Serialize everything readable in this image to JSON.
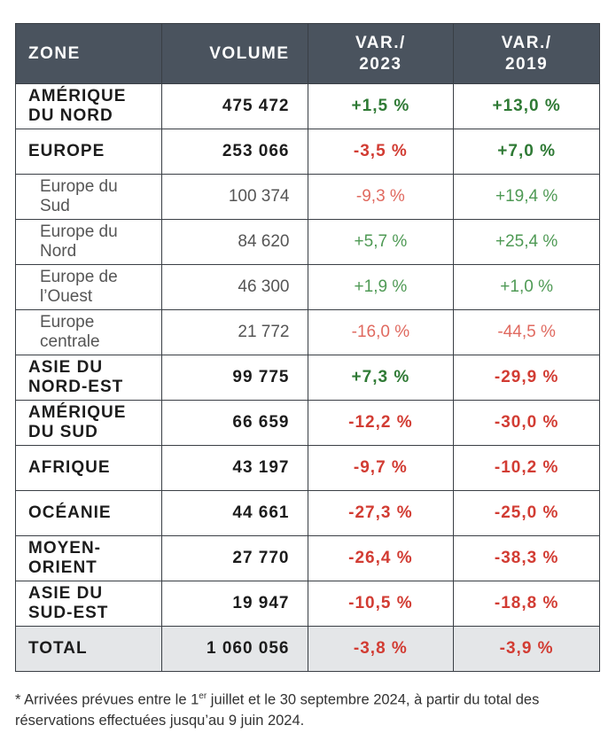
{
  "table": {
    "header": [
      "ZONE",
      "VOLUME",
      "VAR./\n2023",
      "VAR./\n2019"
    ],
    "rows": [
      {
        "style": "main",
        "cells": [
          "AMÉRIQUE DU NORD",
          "475 472",
          "+1,5 %",
          "+13,0 %"
        ]
      },
      {
        "style": "main",
        "cells": [
          "EUROPE",
          "253 066",
          "-3,5 %",
          "+7,0 %"
        ]
      },
      {
        "style": "sub",
        "cells": [
          "Europe du Sud",
          "100 374",
          "-9,3 %",
          "+19,4 %"
        ]
      },
      {
        "style": "sub",
        "cells": [
          "Europe du Nord",
          "84 620",
          "+5,7 %",
          "+25,4 %"
        ]
      },
      {
        "style": "sub",
        "cells": [
          "Europe de l’Ouest",
          "46 300",
          "+1,9 %",
          "+1,0 %"
        ]
      },
      {
        "style": "sub",
        "cells": [
          "Europe centrale",
          "21 772",
          "-16,0 %",
          "-44,5 %"
        ]
      },
      {
        "style": "main",
        "cells": [
          "ASIE DU NORD-EST",
          "99 775",
          "+7,3 %",
          "-29,9 %"
        ]
      },
      {
        "style": "main",
        "cells": [
          "AMÉRIQUE DU SUD",
          "66 659",
          "-12,2 %",
          "-30,0 %"
        ]
      },
      {
        "style": "main",
        "cells": [
          "AFRIQUE",
          "43 197",
          "-9,7 %",
          "-10,2 %"
        ]
      },
      {
        "style": "main",
        "cells": [
          "OCÉANIE",
          "44 661",
          "-27,3 %",
          "-25,0 %"
        ]
      },
      {
        "style": "main",
        "cells": [
          "MOYEN- ORIENT",
          "27 770",
          "-26,4 %",
          "-38,3 %"
        ]
      },
      {
        "style": "main",
        "cells": [
          "ASIE DU SUD-EST",
          "19 947",
          "-10,5 %",
          "-18,8 %"
        ]
      },
      {
        "style": "total",
        "cells": [
          "TOTAL",
          "1 060 056",
          "-3,8 %",
          "-3,9 %"
        ]
      }
    ]
  },
  "footnote": {
    "before": "* Arrivées prévues entre le 1",
    "sup": "er",
    "after": " juillet et le 30 septembre 2024, à partir du total des réservations effectuées jusqu’au 9 juin 2024."
  }
}
